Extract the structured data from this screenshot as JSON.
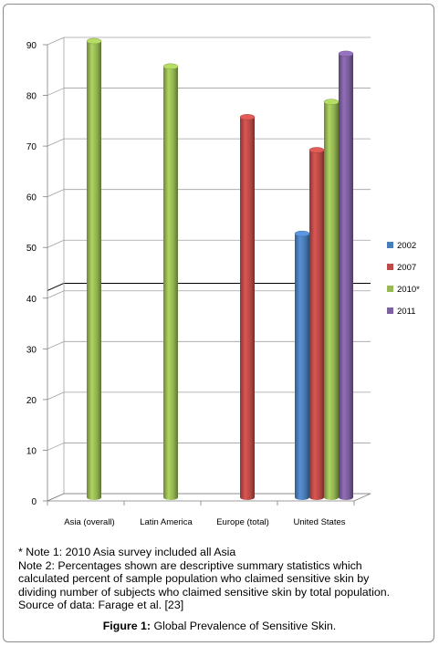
{
  "chart_data": {
    "type": "bar",
    "style": "3d-cylinder",
    "categories": [
      "Asia (overall)",
      "Latin America",
      "Europe (total)",
      "United States"
    ],
    "ylim": [
      0,
      90
    ],
    "yticks": [
      0,
      10,
      20,
      30,
      40,
      50,
      60,
      70,
      80,
      90
    ],
    "reference_line": 41.5,
    "grid": true,
    "legend_position": "right",
    "series": [
      {
        "name": "2002",
        "color": "#4a7ebb",
        "values": [
          null,
          null,
          null,
          52
        ]
      },
      {
        "name": "2007",
        "color": "#be4b48",
        "values": [
          null,
          null,
          75,
          68.5
        ]
      },
      {
        "name": "2010*",
        "color": "#98b954",
        "values": [
          90,
          85,
          null,
          78
        ]
      },
      {
        "name": "2011",
        "color": "#7d60a0",
        "values": [
          null,
          null,
          null,
          87.5
        ]
      }
    ]
  },
  "notes": [
    "* Note 1: 2010 Asia survey included all Asia",
    "Note 2: Percentages shown are descriptive summary statistics which",
    "calculated percent of sample population who claimed sensitive skin by",
    "dividing number of subjects who claimed sensitive skin by total population.",
    "Source of data:  Farage et al. [23]"
  ],
  "caption": {
    "label": "Figure 1:",
    "text": " Global Prevalence of Sensitive Skin."
  }
}
